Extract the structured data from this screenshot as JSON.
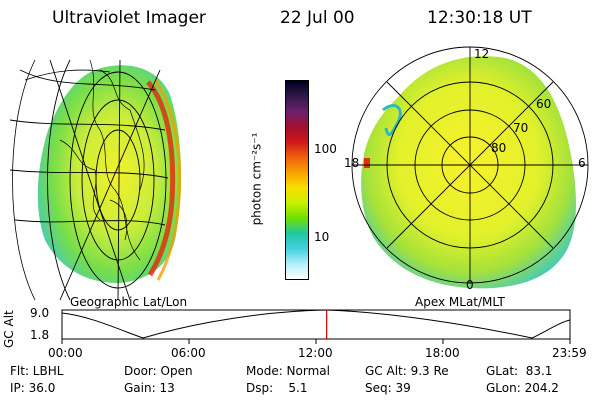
{
  "header": {
    "title": "Ultraviolet Imager",
    "date": "22 Jul 00",
    "time": "12:30:18 UT"
  },
  "left_panel": {
    "caption": "Geographic Lat/Lon"
  },
  "right_panel": {
    "caption": "Apex MLat/MLT",
    "mlt_labels": {
      "top": "12",
      "bottom": "0",
      "left": "18",
      "right": "6"
    },
    "mlat_labels": [
      "60",
      "70",
      "80"
    ]
  },
  "colorbar": {
    "unit_label": "photon cm⁻²s⁻¹",
    "ticks": [
      "100",
      "10"
    ],
    "colors": [
      "#000020",
      "#301848",
      "#6a2070",
      "#a01030",
      "#d01818",
      "#f06010",
      "#f8a000",
      "#f8e000",
      "#c8f000",
      "#70e000",
      "#20c8a0",
      "#40d0e0",
      "#b0f0f8",
      "#ffffff"
    ]
  },
  "timeline": {
    "ylabel": "GC Alt",
    "ymax": "9.0",
    "ymin": "1.8",
    "xticks": [
      "00:00",
      "06:00",
      "12:00",
      "18:00",
      "23:59"
    ],
    "current_time_fraction": 0.521,
    "marker_color": "#cc0000"
  },
  "info": {
    "row1": {
      "flt": "Flt: LBHL",
      "door": "Door: Open",
      "mode": "Mode: Normal",
      "gcalt": "GC Alt: 9.3 Re",
      "glat": "GLat:  83.1"
    },
    "row2": {
      "ip": "IP: 36.0",
      "gain": "Gain: 13",
      "dsp": "Dsp:    5.1",
      "seq": "Seq: 39",
      "glon": "GLon: 204.2"
    }
  }
}
